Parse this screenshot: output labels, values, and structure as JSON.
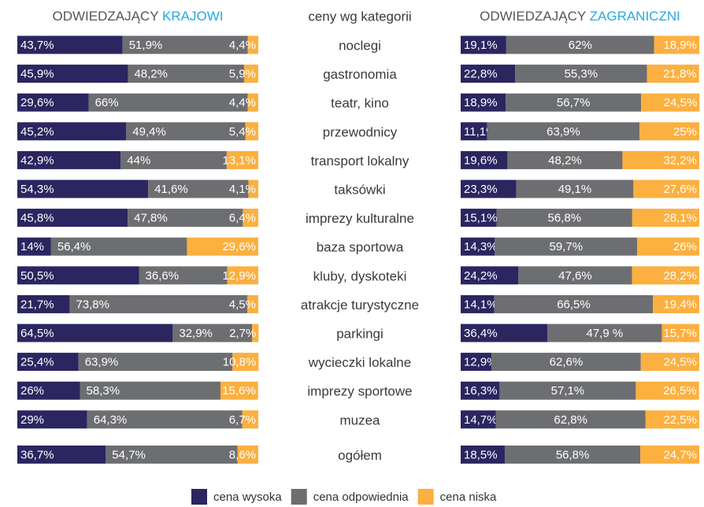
{
  "chart_data": {
    "type": "bar",
    "stacked": true,
    "orientation": "horizontal",
    "category_header": "ceny wg kategorii",
    "categories": [
      "noclegi",
      "gastronomia",
      "teatr, kino",
      "przewodnicy",
      "transport lokalny",
      "taksówki",
      "imprezy kulturalne",
      "baza sportowa",
      "kluby, dyskoteki",
      "atrakcje turystyczne",
      "parkingi",
      "wycieczki lokalne",
      "imprezy sportowe",
      "muzea",
      "ogółem"
    ],
    "xlim": [
      0,
      100
    ],
    "panels": [
      {
        "title": "ODWIEDZAJĄCY",
        "title_highlight": "KRAJOWI",
        "highlight_color": "#29a8e0",
        "series": [
          {
            "name": "cena wysoka",
            "color": "#2b2560",
            "values": [
              43.7,
              45.9,
              29.6,
              45.2,
              42.9,
              54.3,
              45.8,
              14,
              50.5,
              21.7,
              64.5,
              25.4,
              26,
              29,
              36.7
            ],
            "value_labels": [
              "43,7%",
              "45,9%",
              "29,6%",
              "45,2%",
              "42,9%",
              "54,3%",
              "45,8%",
              "14%",
              "50,5%",
              "21,7%",
              "64,5%",
              "25,4%",
              "26%",
              "29%",
              "36,7%"
            ]
          },
          {
            "name": "cena odpowiednia",
            "color": "#6d6e71",
            "values": [
              51.9,
              48.2,
              66,
              49.4,
              44,
              41.6,
              47.8,
              56.4,
              36.6,
              73.8,
              32.9,
              63.9,
              58.3,
              64.3,
              54.7
            ],
            "value_labels": [
              "51,9%",
              "48,2%",
              "66%",
              "49,4%",
              "44%",
              "41,6%",
              "47,8%",
              "56,4%",
              "36,6%",
              "73,8%",
              "32,9%",
              "63,9%",
              "58,3%",
              "64,3%",
              "54,7%"
            ]
          },
          {
            "name": "cena niska",
            "color": "#fbb040",
            "values": [
              4.4,
              5.9,
              4.4,
              5.4,
              13.1,
              4.1,
              6.4,
              29.6,
              12.9,
              4.5,
              2.7,
              10.8,
              15.6,
              6.7,
              8.6
            ],
            "value_labels": [
              "4,4%",
              "5,9%",
              "4,4%",
              "5,4%",
              "13,1%",
              "4,1%",
              "6,4%",
              "29,6%",
              "12,9%",
              "4,5%",
              "2,7%",
              "10,8%",
              "15,6%",
              "6,7%",
              "8,6%"
            ]
          }
        ]
      },
      {
        "title": "ODWIEDZAJĄCY",
        "title_highlight": "ZAGRANICZNI",
        "highlight_color": "#29a8e0",
        "series": [
          {
            "name": "cena wysoka",
            "color": "#2b2560",
            "values": [
              19.1,
              22.8,
              18.9,
              11.1,
              19.6,
              23.3,
              15.1,
              14.3,
              24.2,
              14.1,
              36.4,
              12.9,
              16.3,
              14.7,
              18.5
            ],
            "value_labels": [
              "19,1%",
              "22,8%",
              "18,9%",
              "11,1%",
              "19,6%",
              "23,3%",
              "15,1%",
              "14,3%",
              "24,2%",
              "14,1%",
              "36,4%",
              "12,9%",
              "16,3%",
              "14,7%",
              "18,5%"
            ]
          },
          {
            "name": "cena odpowiednia",
            "color": "#6d6e71",
            "values": [
              62,
              55.3,
              56.7,
              63.9,
              48.2,
              49.1,
              56.8,
              59.7,
              47.6,
              66.5,
              47.9,
              62.6,
              57.1,
              62.8,
              56.8
            ],
            "value_labels": [
              "62%",
              "55,3%",
              "56,7%",
              "63,9%",
              "48,2%",
              "49,1%",
              "56,8%",
              "59,7%",
              "47,6%",
              "66,5%",
              "47,9 %",
              "62,6%",
              "57,1%",
              "62,8%",
              "56,8%"
            ]
          },
          {
            "name": "cena niska",
            "color": "#fbb040",
            "values": [
              18.9,
              21.8,
              24.5,
              25,
              32.2,
              27.6,
              28.1,
              26,
              28.2,
              19.4,
              15.7,
              24.5,
              26.5,
              22.5,
              24.7
            ],
            "value_labels": [
              "18,9%",
              "21,8%",
              "24,5%",
              "25%",
              "32,2%",
              "27,6%",
              "28,1%",
              "26%",
              "28,2%",
              "19,4%",
              "15,7%",
              "24,5%",
              "26,5%",
              "22,5%",
              "24,7%"
            ]
          }
        ]
      }
    ]
  }
}
